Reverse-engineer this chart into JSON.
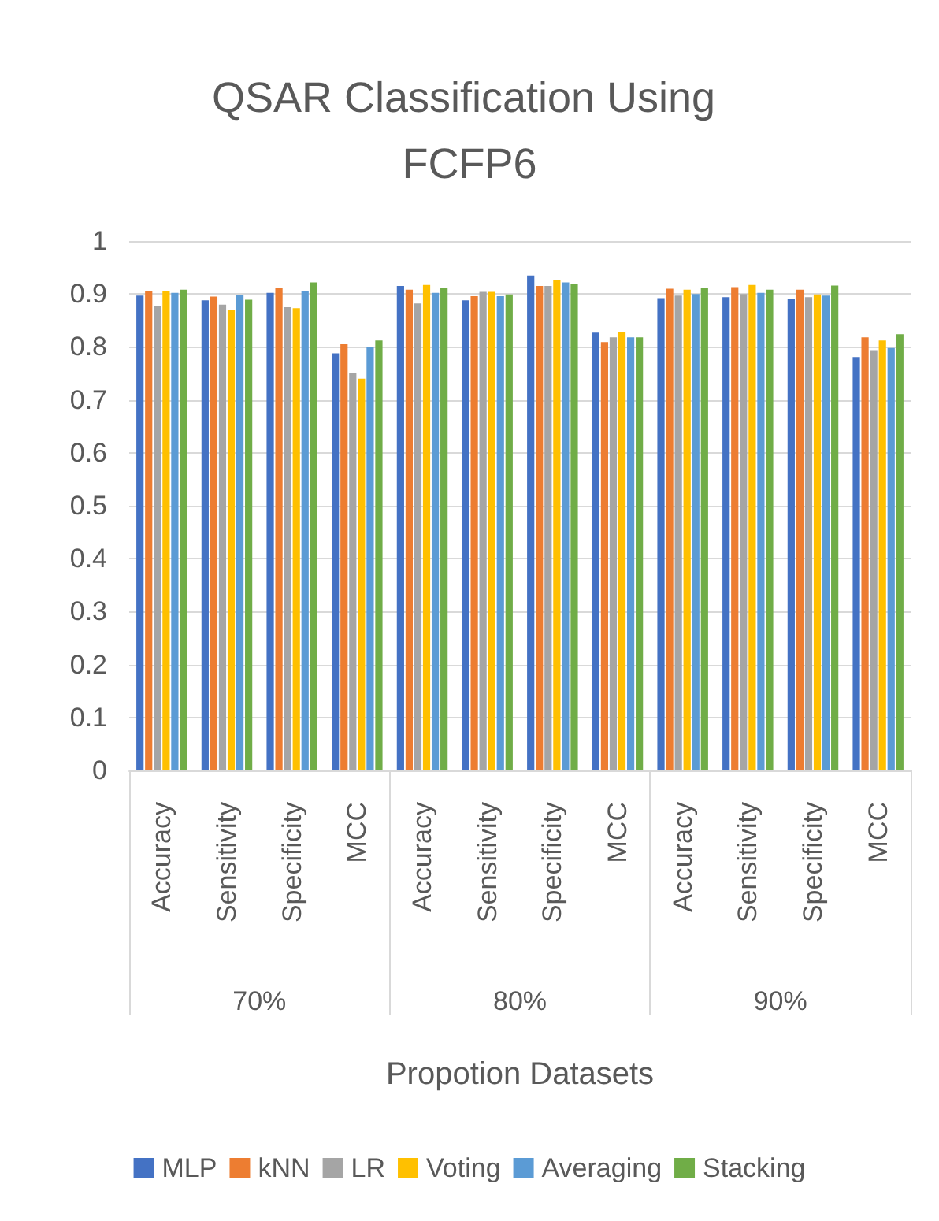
{
  "chart_data": {
    "type": "bar",
    "title": "QSAR Classification Using FCFP6",
    "xlabel": "Propotion Datasets",
    "categories": [
      "Accuracy",
      "Sensitivity",
      "Specificity",
      "MCC",
      "Accuracy",
      "Sensitivity",
      "Specificity",
      "MCC",
      "Accuracy",
      "Sensitivity",
      "Specificity",
      "MCC"
    ],
    "annotations": [
      "70%",
      "80%",
      "90%"
    ],
    "series": [
      {
        "name": "MLP",
        "color": "#4472c4",
        "values": [
          0.897,
          0.888,
          0.902,
          0.788,
          0.915,
          0.888,
          0.935,
          0.827,
          0.892,
          0.894,
          0.89,
          0.781
        ]
      },
      {
        "name": "kNN",
        "color": "#ed7d31",
        "values": [
          0.905,
          0.895,
          0.911,
          0.805,
          0.908,
          0.896,
          0.915,
          0.809,
          0.91,
          0.913,
          0.908,
          0.818
        ]
      },
      {
        "name": "LR",
        "color": "#a5a5a5",
        "values": [
          0.877,
          0.88,
          0.875,
          0.75,
          0.882,
          0.904,
          0.915,
          0.818,
          0.897,
          0.9,
          0.894,
          0.794
        ]
      },
      {
        "name": "Voting",
        "color": "#ffc000",
        "values": [
          0.905,
          0.869,
          0.873,
          0.74,
          0.917,
          0.904,
          0.926,
          0.828,
          0.908,
          0.917,
          0.899,
          0.812
        ]
      },
      {
        "name": "Averaging",
        "color": "#5b9bd5",
        "values": [
          0.902,
          0.898,
          0.905,
          0.799,
          0.902,
          0.896,
          0.922,
          0.818,
          0.9,
          0.902,
          0.897,
          0.798
        ]
      },
      {
        "name": "Stacking",
        "color": "#70ad47",
        "values": [
          0.908,
          0.889,
          0.922,
          0.812,
          0.911,
          0.899,
          0.919,
          0.818,
          0.912,
          0.908,
          0.916,
          0.824
        ]
      }
    ],
    "ylim": [
      0,
      1
    ],
    "yticks": [
      0,
      0.1,
      0.2,
      0.3,
      0.4,
      0.5,
      0.6,
      0.7,
      0.8,
      0.9,
      1
    ],
    "grid": "y",
    "legend": "bottom"
  }
}
